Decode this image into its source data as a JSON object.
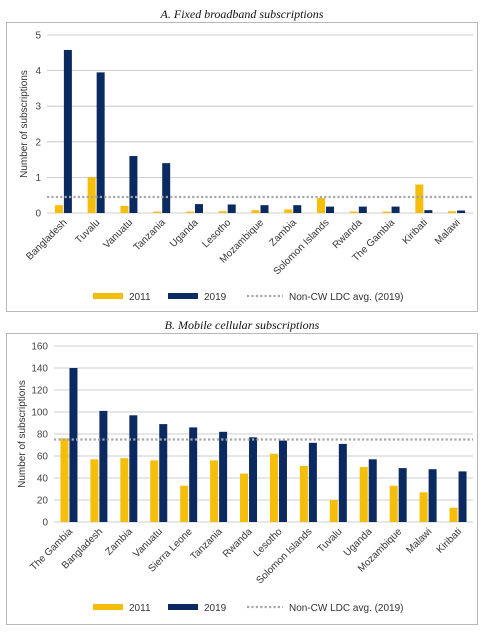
{
  "colors": {
    "s2011": "#F5BE0B",
    "s2019": "#0C2A62",
    "avg": "#A6A6A6",
    "axis": "#bfbfbf"
  },
  "legend": {
    "s2011": "2011",
    "s2019": "2019",
    "avg": "Non-CW LDC avg. (2019)"
  },
  "chart_data": [
    {
      "type": "bar",
      "title": "A.  Fixed broadband subscriptions",
      "ylabel": "Number of subscriptions",
      "ylim": [
        0,
        5
      ],
      "yticks": [
        0,
        1,
        2,
        3,
        4,
        5
      ],
      "grid": true,
      "legend_position": "bottom",
      "categories": [
        "Bangladesh",
        "Tuvalu",
        "Vanuatu",
        "Tanzania",
        "Uganda",
        "Lesotho",
        "Mozambique",
        "Zambia",
        "Solomon Islands",
        "Rwanda",
        "The Gambia",
        "Kiribati",
        "Malawi"
      ],
      "series": [
        {
          "name": "2011",
          "values": [
            0.22,
            1.0,
            0.2,
            0.04,
            0.04,
            0.05,
            0.08,
            0.1,
            0.42,
            0.04,
            0.04,
            0.8,
            0.05
          ]
        },
        {
          "name": "2019",
          "values": [
            4.58,
            3.95,
            1.6,
            1.4,
            0.25,
            0.24,
            0.22,
            0.22,
            0.18,
            0.18,
            0.18,
            0.08,
            0.07
          ]
        }
      ],
      "reference_line": {
        "name": "Non-CW LDC avg. (2019)",
        "value": 0.45
      }
    },
    {
      "type": "bar",
      "title": "B.  Mobile cellular subscriptions",
      "ylabel": "Number of subscriptions",
      "ylim": [
        0,
        160
      ],
      "yticks": [
        0,
        20,
        40,
        60,
        80,
        100,
        120,
        140,
        160
      ],
      "grid": true,
      "legend_position": "bottom",
      "categories": [
        "The Gambia",
        "Bangladesh",
        "Zambia",
        "Vanuatu",
        "Sierra Leone",
        "Tanzania",
        "Rwanda",
        "Lesotho",
        "Solomon Islands",
        "Tuvalu",
        "Uganda",
        "Mozambique",
        "Malawi",
        "Kiribati"
      ],
      "series": [
        {
          "name": "2011",
          "values": [
            76,
            57,
            58,
            56,
            33,
            56,
            44,
            62,
            51,
            20,
            50,
            33,
            27,
            13
          ]
        },
        {
          "name": "2019",
          "values": [
            140,
            101,
            97,
            89,
            86,
            82,
            77,
            74,
            72,
            71,
            57,
            49,
            48,
            46
          ]
        }
      ],
      "reference_line": {
        "name": "Non-CW LDC avg. (2019)",
        "value": 75
      }
    }
  ]
}
